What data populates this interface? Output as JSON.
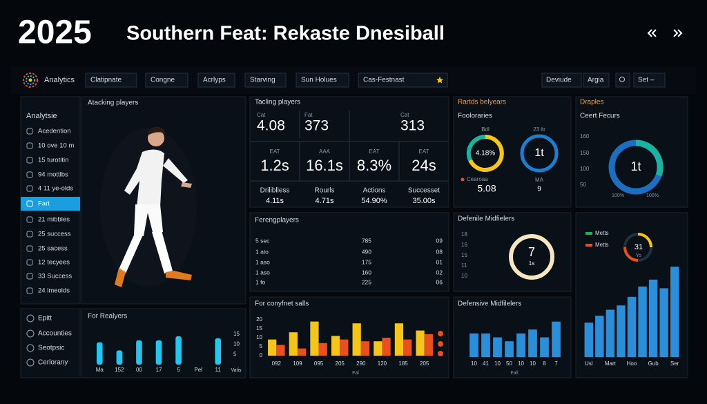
{
  "header": {
    "year": "2025",
    "title": "Southern Feat: Rekaste Dnesiball"
  },
  "nav": {
    "brand": "Analytics",
    "filters": [
      "Clatipnate",
      "Congne",
      "Acrlyps",
      "Starving",
      "Sun Holues",
      "Cas-Festnast"
    ],
    "right": [
      "Deviude",
      "Argia",
      "Set –"
    ]
  },
  "sidebar": {
    "title": "Analytsie",
    "items": [
      "Acedention",
      "10 ove 10 m",
      "15 turotitin",
      "94 mottlbs",
      "4 11 ye-olds",
      "Fart",
      "21 mibbles",
      "25 success",
      "25 sacess",
      "12 tecyees",
      "33 Success",
      "24 lmeolds"
    ],
    "bottom": [
      "Epitt",
      "Accounties",
      "Seotpsic",
      "Cerlorany"
    ]
  },
  "attacking": {
    "title": "Atacking players"
  },
  "tackling": {
    "title": "Tacling players",
    "top": [
      {
        "label": "Cat",
        "value": "4.08"
      },
      {
        "label": "Fat",
        "value": "373"
      },
      {
        "label": "Cat",
        "value": "313"
      }
    ],
    "mid": [
      {
        "label": "EAT",
        "value": "1.2s"
      },
      {
        "label": "AAA",
        "value": "16.1s"
      },
      {
        "label": "EAT",
        "value": "8.3%"
      },
      {
        "label": "EAT",
        "value": "24s"
      }
    ],
    "bottom": [
      {
        "label": "Driliblless",
        "value": "4.11s"
      },
      {
        "label": "Rourls",
        "value": "4.71s"
      },
      {
        "label": "Actions",
        "value": "54.90%"
      },
      {
        "label": "Successet",
        "value": "35.00s"
      }
    ]
  },
  "rartds": {
    "title": "Rartds belyears",
    "subtitle": "Fooloraries",
    "donut1": {
      "top": "Bdl",
      "center": "4.18%",
      "label": "Cearoaa",
      "value": "5.08"
    },
    "donut2": {
      "top": "23 ltr",
      "center": "1t",
      "label": "MA",
      "value": "9"
    }
  },
  "draples": {
    "title": "Draples",
    "subtitle": "Ceert Fecurs",
    "scale": [
      "160",
      "150",
      "100",
      "50"
    ],
    "center": "1t",
    "left": "100%",
    "right": "100%"
  },
  "fereng": {
    "title": "Ferengplayers",
    "rows": [
      [
        "5 sec",
        "785",
        "09"
      ],
      [
        "1 ato",
        "490",
        "08"
      ],
      [
        "1 aso",
        "175",
        "01"
      ],
      [
        "1 aso",
        "160",
        "02"
      ],
      [
        "1 fo",
        "225",
        "06"
      ]
    ]
  },
  "defenile": {
    "title": "Defenile Midfielers",
    "scale": [
      "18",
      "16",
      "15",
      "11",
      "10"
    ],
    "value": "7",
    "unit": "1s"
  },
  "realyers": {
    "title": "For Realyers",
    "categories": [
      "Ma",
      "152",
      "00",
      "17",
      "5",
      "Pel",
      "11"
    ],
    "values": [
      11,
      7,
      12,
      12,
      14,
      null,
      13
    ],
    "color": "#1ec8f0",
    "ylim": [
      0,
      17
    ],
    "yticks": [
      15,
      10,
      5
    ],
    "side_label": "Vatis"
  },
  "conyfnet": {
    "title": "For conyfnet salls",
    "categories": [
      "092",
      "109",
      "095",
      "205",
      "290",
      "120",
      "185",
      "205"
    ],
    "series": [
      {
        "color": "#f5c518",
        "values": [
          9,
          13,
          19,
          11,
          18,
          8,
          18,
          14
        ]
      },
      {
        "color": "#e8501e",
        "values": [
          6,
          4,
          7,
          9,
          8,
          10,
          9,
          12
        ]
      }
    ],
    "ylim": [
      0,
      20
    ],
    "yticks": [
      20,
      15,
      10,
      5,
      0
    ],
    "xlabel": "Fal"
  },
  "defensive": {
    "title": "Defensive Midfilelers",
    "categories": [
      "10",
      "41",
      "10",
      "50",
      "10",
      "10",
      "8",
      "7"
    ],
    "values": [
      6,
      6,
      5,
      4,
      6,
      7,
      5,
      9
    ],
    "color": "#2a8fd8",
    "ylim": [
      0,
      10
    ],
    "xlabel": "Fall"
  },
  "trend": {
    "legend": [
      "Metts",
      "Metts"
    ],
    "donut": {
      "value": "31",
      "unit": "Yo"
    },
    "categories": [
      "Usl",
      null,
      "Mart",
      null,
      "Hoo",
      null,
      "Gub",
      null,
      "Ser"
    ],
    "values": [
      40,
      48,
      55,
      60,
      70,
      82,
      90,
      80,
      105
    ],
    "color": "#2a8fd8",
    "ylim": [
      0,
      110
    ]
  }
}
